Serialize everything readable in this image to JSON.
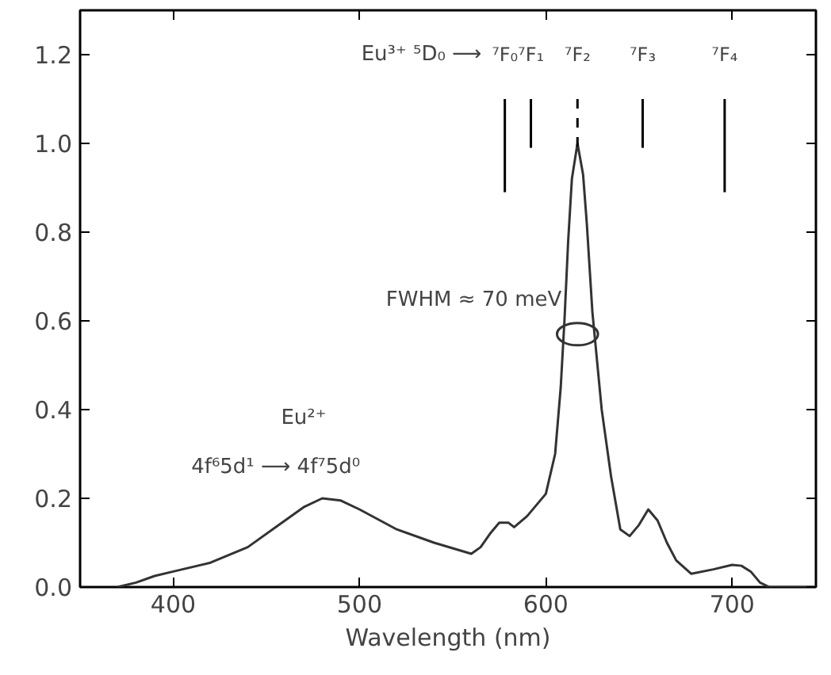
{
  "chart_data": {
    "type": "line",
    "xlabel": "Wavelength (nm)",
    "x": [
      370,
      380,
      390,
      400,
      420,
      440,
      460,
      470,
      480,
      490,
      500,
      520,
      540,
      560,
      565,
      570,
      575,
      580,
      583,
      590,
      600,
      605,
      608,
      610,
      612,
      614,
      617,
      620,
      622,
      625,
      630,
      635,
      640,
      645,
      650,
      655,
      660,
      665,
      670,
      678,
      690,
      700,
      705,
      710,
      715,
      720,
      745
    ],
    "values": [
      0.0,
      0.01,
      0.025,
      0.035,
      0.055,
      0.09,
      0.15,
      0.18,
      0.2,
      0.195,
      0.175,
      0.13,
      0.1,
      0.075,
      0.09,
      0.12,
      0.145,
      0.145,
      0.135,
      0.16,
      0.21,
      0.3,
      0.45,
      0.6,
      0.78,
      0.92,
      1.0,
      0.93,
      0.82,
      0.62,
      0.4,
      0.25,
      0.13,
      0.115,
      0.14,
      0.175,
      0.15,
      0.1,
      0.06,
      0.03,
      0.04,
      0.05,
      0.048,
      0.035,
      0.01,
      0.0,
      0.0
    ],
    "color": "#333333",
    "line_style": "solid",
    "marker": "none",
    "xlim": [
      350,
      745
    ],
    "ylim": [
      0,
      1.3
    ],
    "xticks": [
      400,
      500,
      600,
      700
    ],
    "yticks": [
      {
        "value": 0,
        "label": "0.0"
      },
      0.2,
      0.4,
      0.6,
      0.8,
      {
        "value": 1,
        "label": "1.0"
      },
      1.2
    ],
    "grid": false,
    "ref_lines": [
      {
        "axis": "x",
        "value": 578,
        "label": "⁷F₀",
        "color": "#000000",
        "line_style": "solid"
      },
      {
        "axis": "x",
        "value": 592,
        "label": "⁷F₁",
        "color": "#000000",
        "line_style": "solid"
      },
      {
        "axis": "x",
        "value": 617,
        "label": "⁷F₂",
        "color": "#000000",
        "line_style": "dashed"
      },
      {
        "axis": "x",
        "value": 652,
        "label": "⁷F₃",
        "color": "#000000",
        "line_style": "solid"
      },
      {
        "axis": "x",
        "value": 696,
        "label": "⁷F₄",
        "color": "#000000",
        "line_style": "solid"
      }
    ],
    "annotations": [
      "Eu³⁺  ⁵D₀ ⟶",
      {
        "text": "FWHM ≈ 70 meV",
        "x": 617,
        "y": 0.57
      },
      "Eu²⁺",
      "4f⁶5d¹ ⟶ 4f⁷5d⁰"
    ]
  }
}
